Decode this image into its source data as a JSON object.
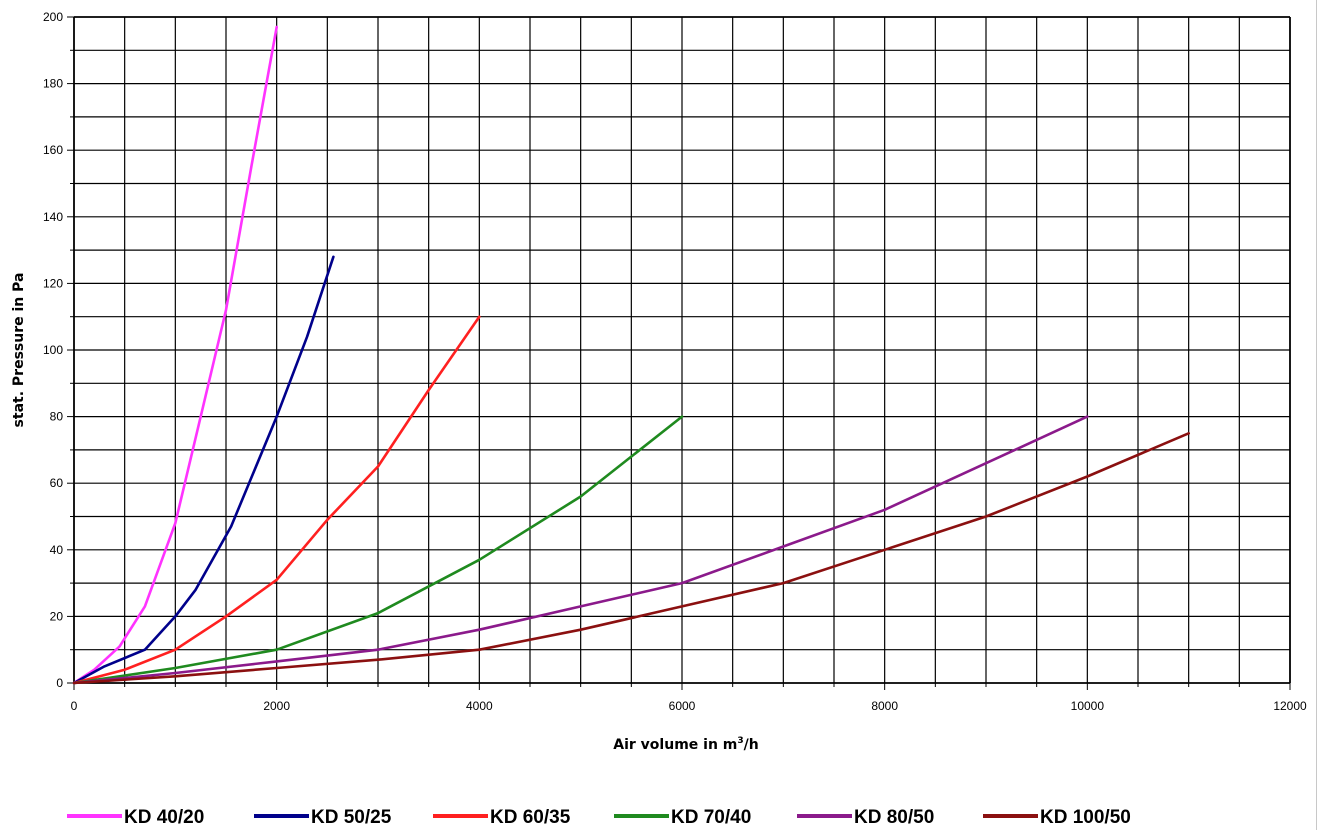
{
  "chart_data": {
    "type": "line",
    "title": "",
    "xlabel": "Air volume in m",
    "xlabel_sup": "3",
    "xlabel_suffix": "/h",
    "ylabel": "stat. Pressure in Pa",
    "xlim": [
      0,
      12000
    ],
    "ylim": [
      0,
      200
    ],
    "xticks": [
      0,
      2000,
      4000,
      6000,
      8000,
      10000,
      12000
    ],
    "yticks": [
      0,
      20,
      40,
      60,
      80,
      100,
      120,
      140,
      160,
      180,
      200
    ],
    "xtick_labels": [
      "0",
      "2000",
      "4000",
      "6000",
      "8000",
      "10000",
      "12000"
    ],
    "ytick_labels": [
      "0",
      "20",
      "40",
      "60",
      "80",
      "100",
      "120",
      "140",
      "160",
      "180",
      "200"
    ],
    "grid": true,
    "legend_position": "bottom",
    "series": [
      {
        "name": "KD 40/20",
        "color": "#ff33ff",
        "x": [
          0,
          200,
          450,
          700,
          1000,
          1250,
          1500,
          1750,
          2000
        ],
        "y": [
          0,
          4,
          11,
          23,
          48,
          80,
          112,
          155,
          197
        ]
      },
      {
        "name": "KD 50/25",
        "color": "#00008b",
        "x": [
          0,
          300,
          700,
          1000,
          1200,
          1550,
          2000,
          2300,
          2560
        ],
        "y": [
          0,
          5,
          10,
          20,
          28,
          47,
          80,
          104,
          128
        ]
      },
      {
        "name": "KD 60/35",
        "color": "#ff2020",
        "x": [
          0,
          500,
          1000,
          1500,
          2000,
          2500,
          3000,
          3500,
          4000
        ],
        "y": [
          0,
          4,
          10,
          20,
          31,
          49,
          65,
          88,
          110
        ]
      },
      {
        "name": "KD 70/40",
        "color": "#1f8a1f",
        "x": [
          0,
          1000,
          2000,
          3000,
          4000,
          5000,
          6000
        ],
        "y": [
          0,
          4.5,
          10,
          21,
          37,
          56,
          80
        ]
      },
      {
        "name": "KD 80/50",
        "color": "#8b1a8b",
        "x": [
          0,
          1000,
          2000,
          3000,
          4000,
          5000,
          6000,
          7000,
          8000,
          9000,
          10000
        ],
        "y": [
          0,
          3,
          6.5,
          10,
          16,
          23,
          30,
          41,
          52,
          66,
          80
        ]
      },
      {
        "name": "KD 100/50",
        "color": "#8b1010",
        "x": [
          0,
          1000,
          2000,
          3000,
          4000,
          5000,
          6000,
          7000,
          8000,
          9000,
          10000,
          11000
        ],
        "y": [
          0,
          2,
          4.5,
          7,
          10,
          16,
          23,
          30,
          40,
          50,
          62,
          75
        ]
      }
    ]
  }
}
